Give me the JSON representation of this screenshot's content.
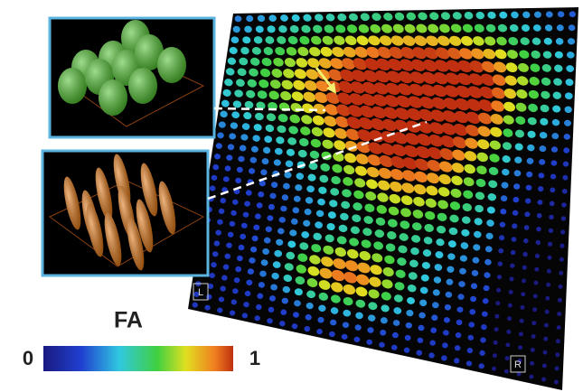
{
  "colorbar": {
    "title": "FA",
    "min_label": "0",
    "max_label": "1"
  },
  "panel": {
    "left_marker": "L",
    "right_marker": "R"
  }
}
